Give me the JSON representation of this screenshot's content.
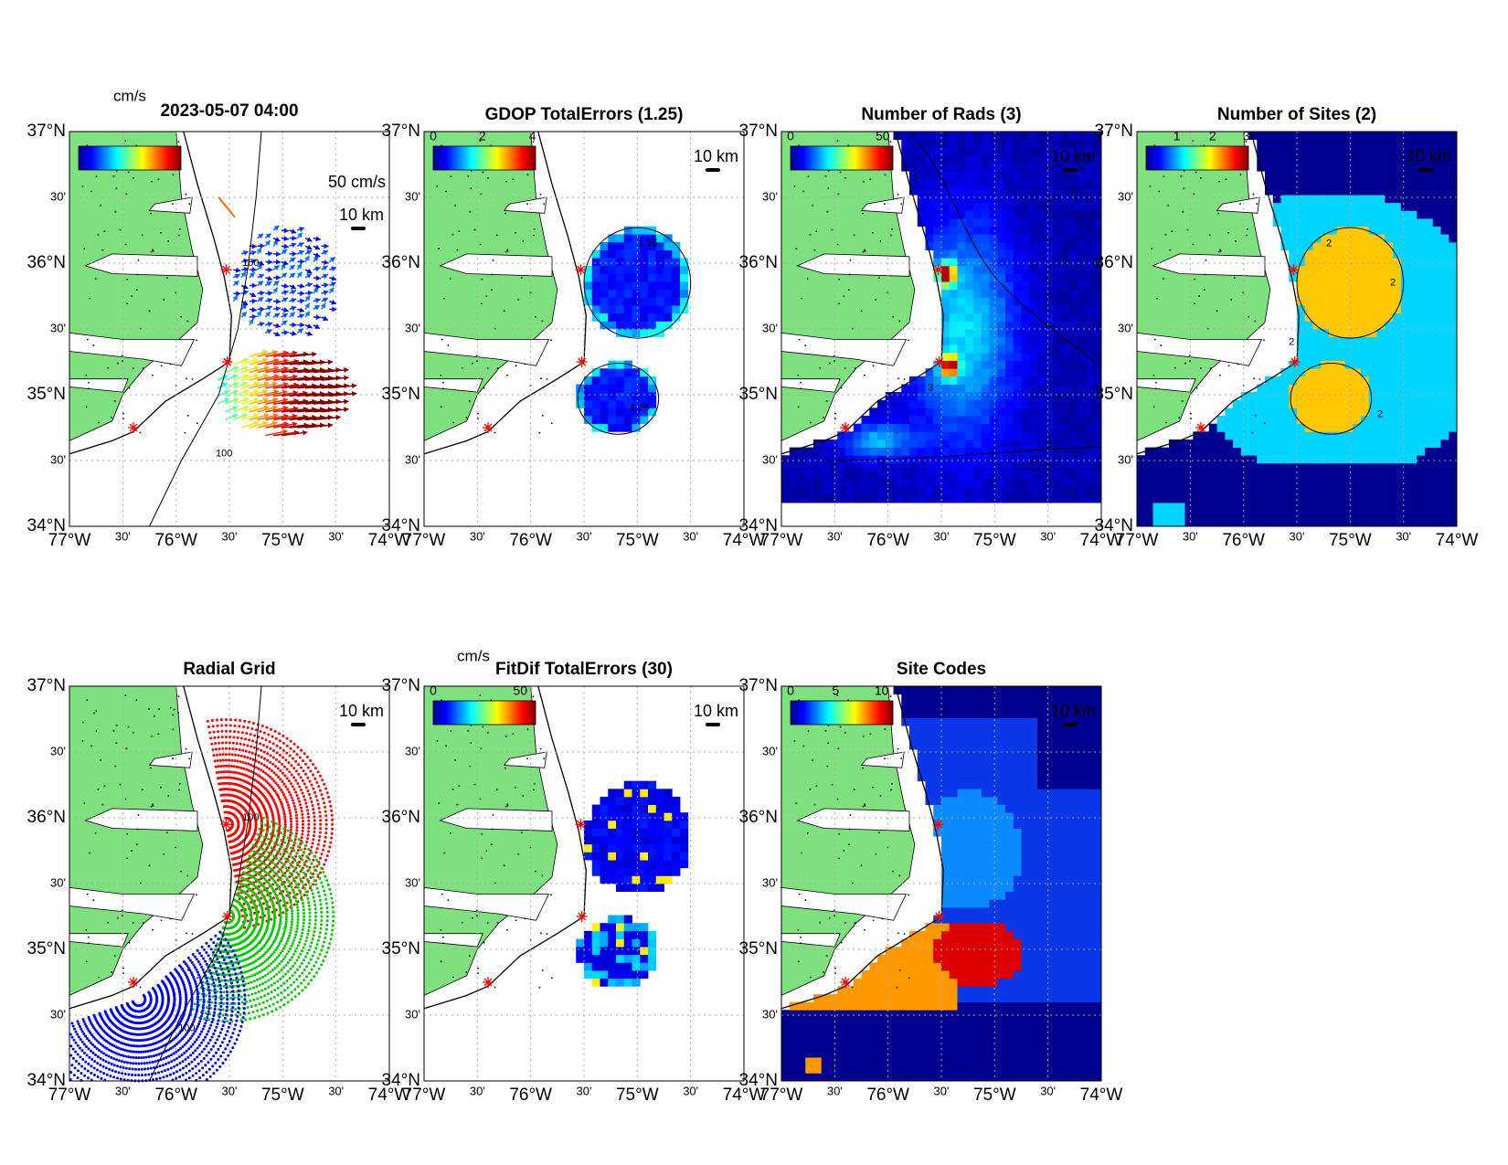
{
  "figure": {
    "panels": [
      {
        "title": "2023-05-07 04:00",
        "unit": "cm/s",
        "vector_scale": "50 cm/s",
        "scale_bar": "10 km",
        "contour_labels": [
          "100",
          "100"
        ]
      },
      {
        "title": "GDOP TotalErrors (1.25)",
        "colorbar_ticks": [
          "0",
          "2",
          "4"
        ],
        "scale_bar": "10 km",
        "contour_labels": [
          "1.25",
          "1.25"
        ]
      },
      {
        "title": "Number of Rads (3)",
        "colorbar_ticks": [
          "0",
          "50"
        ],
        "scale_bar": "10 km",
        "contour_labels": [
          "3",
          "3",
          "3"
        ]
      },
      {
        "title": "Number of Sites (2)",
        "colorbar_ticks": [
          "1",
          "2",
          "3"
        ],
        "scale_bar": "10 km",
        "contour_labels": [
          "2",
          "2",
          "2",
          "2"
        ]
      },
      {
        "title": "Radial Grid",
        "scale_bar": "10 km",
        "contour_labels": [
          "100",
          "100"
        ]
      },
      {
        "title": "FitDif TotalErrors (30)",
        "unit": "cm/s",
        "colorbar_ticks": [
          "0",
          "50"
        ],
        "scale_bar": "10 km"
      },
      {
        "title": "Site Codes",
        "colorbar_ticks": [
          "0",
          "5",
          "10"
        ],
        "scale_bar": "10 km"
      }
    ],
    "lat_labels": [
      "37°N",
      "30'",
      "36°N",
      "30'",
      "35°N",
      "30'",
      "34°N"
    ],
    "lon_labels": [
      "77°W",
      "30'",
      "76°W",
      "30'",
      "75°W",
      "30'",
      "74°W"
    ]
  }
}
